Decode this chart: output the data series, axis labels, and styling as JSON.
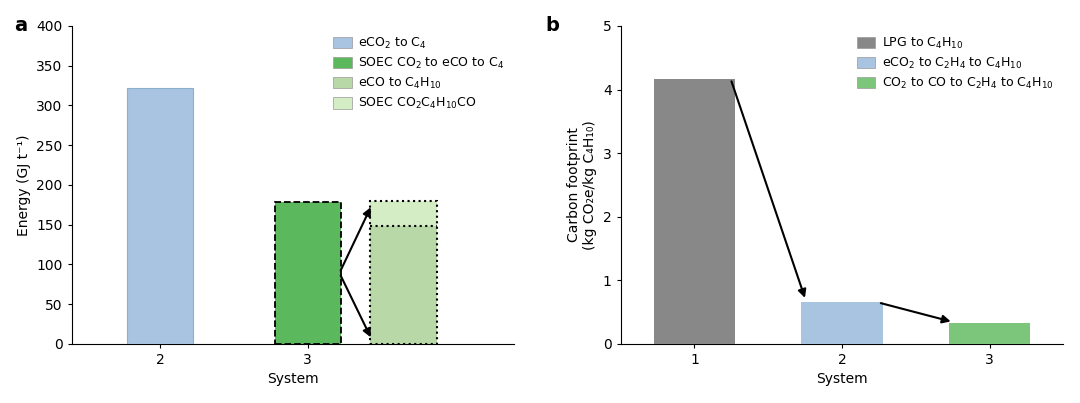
{
  "panel_a": {
    "bar1_x": 2,
    "bar1_height": 322,
    "bar1_color": "#a8c4e0",
    "bar2_x": 3,
    "bar2_height": 178,
    "bar2_color": "#5cb85c",
    "bar3_x": 3.65,
    "bar3_height": 180,
    "bar3_lower_height": 148,
    "bar3_color_upper": "#d4edc4",
    "bar3_color_lower": "#b8d8a8",
    "bar_width": 0.45,
    "xlim": [
      1.4,
      4.4
    ],
    "ylim": [
      0,
      400
    ],
    "yticks": [
      0,
      50,
      100,
      150,
      200,
      250,
      300,
      350,
      400
    ],
    "xticks": [
      2,
      3
    ],
    "xlabel": "System",
    "ylabel": "Energy (GJ t⁻¹)",
    "legend_entries": [
      {
        "label": "eCO$_2$ to C$_4$",
        "color": "#a8c4e0"
      },
      {
        "label": "SOEC CO$_2$ to eCO to C$_4$",
        "color": "#5cb85c"
      },
      {
        "label": "eCO to C$_4$H$_{10}$",
        "color": "#b8d8a8"
      },
      {
        "label": "SOEC CO$_2$C$_4$H$_{10}$CO",
        "color": "#d4edc4"
      }
    ],
    "panel_label": "a"
  },
  "panel_b": {
    "bar1_x": 1,
    "bar1_height": 4.17,
    "bar1_color": "#888888",
    "bar2_x": 2,
    "bar2_height": 0.65,
    "bar2_color": "#a8c4e0",
    "bar3_x": 3,
    "bar3_height": 0.32,
    "bar3_color": "#7bc67b",
    "bar_width": 0.55,
    "xlim": [
      0.5,
      3.5
    ],
    "ylim": [
      0,
      5
    ],
    "yticks": [
      0,
      1,
      2,
      3,
      4,
      5
    ],
    "xticks": [
      1,
      2,
      3
    ],
    "xlabel": "System",
    "ylabel": "Carbon footprint\n(kg CO₂e/kg C₄H₁₀)",
    "legend_entries": [
      {
        "label": "LPG to C$_4$H$_{10}$",
        "color": "#888888"
      },
      {
        "label": "eCO$_2$ to C$_2$H$_4$ to C$_4$H$_{10}$",
        "color": "#a8c4e0"
      },
      {
        "label": "CO$_2$ to CO to C$_2$H$_4$ to C$_4$H$_{10}$",
        "color": "#7bc67b"
      }
    ],
    "panel_label": "b"
  },
  "background_color": "#ffffff",
  "fontsize": 10,
  "label_fontsize": 10,
  "tick_fontsize": 10
}
